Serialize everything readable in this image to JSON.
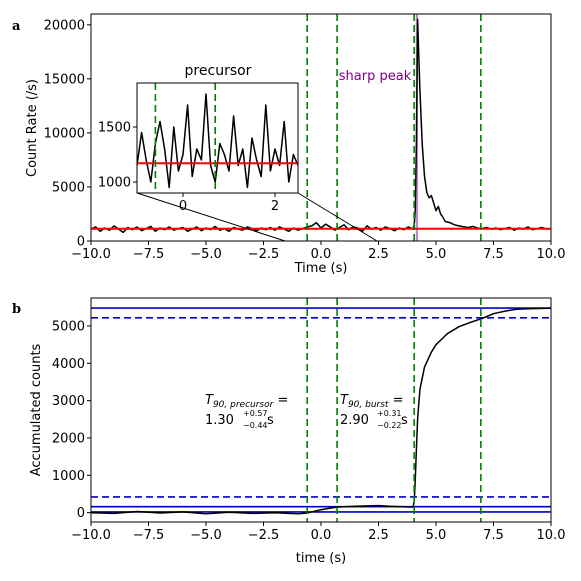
{
  "chart_data": [
    {
      "panel_label": "a",
      "type": "line",
      "xlabel": "Time (s)",
      "ylabel": "Count Rate (/s)",
      "xlim": [
        -10,
        10
      ],
      "ylim": [
        0,
        21000
      ],
      "xticks": [
        -10.0,
        -7.5,
        -5.0,
        -2.5,
        0.0,
        2.5,
        5.0,
        7.5,
        10.0
      ],
      "xtick_labels": [
        "−10.0",
        "−7.5",
        "−5.0",
        "−2.5",
        "0.0",
        "2.5",
        "5.0",
        "7.5",
        "10.0"
      ],
      "yticks": [
        0,
        5000,
        10000,
        15000,
        20000
      ],
      "ytick_labels": [
        "0",
        "5000",
        "10000",
        "15000",
        "20000"
      ],
      "series": [
        {
          "color": "#000000",
          "x": [
            -10.0,
            -9.8,
            -9.6,
            -9.4,
            -9.2,
            -9.0,
            -8.8,
            -8.6,
            -8.4,
            -8.2,
            -8.0,
            -7.8,
            -7.6,
            -7.4,
            -7.2,
            -7.0,
            -6.8,
            -6.6,
            -6.4,
            -6.2,
            -6.0,
            -5.8,
            -5.6,
            -5.4,
            -5.2,
            -5.0,
            -4.8,
            -4.6,
            -4.4,
            -4.2,
            -4.0,
            -3.8,
            -3.6,
            -3.4,
            -3.2,
            -3.0,
            -2.8,
            -2.6,
            -2.4,
            -2.2,
            -2.0,
            -1.8,
            -1.6,
            -1.4,
            -1.2,
            -1.0,
            -0.8,
            -0.6,
            -0.4,
            -0.2,
            0.0,
            0.2,
            0.4,
            0.6,
            0.8,
            1.0,
            1.2,
            1.4,
            1.6,
            1.8,
            2.0,
            2.2,
            2.4,
            2.6,
            2.8,
            3.0,
            3.2,
            3.4,
            3.6,
            3.8,
            4.0,
            4.05,
            4.1,
            4.15,
            4.2,
            4.3,
            4.4,
            4.5,
            4.6,
            4.7,
            4.8,
            4.9,
            5.0,
            5.1,
            5.2,
            5.3,
            5.4,
            5.6,
            5.8,
            6.0,
            6.2,
            6.4,
            6.6,
            6.8,
            7.0,
            7.2,
            7.4,
            7.6,
            7.8,
            8.0,
            8.2,
            8.4,
            8.6,
            8.8,
            9.0,
            9.2,
            9.4,
            9.6,
            9.8,
            10.0
          ],
          "y": [
            1100,
            1300,
            900,
            1200,
            1000,
            1400,
            1100,
            800,
            1250,
            1050,
            1300,
            950,
            1150,
            1350,
            900,
            1200,
            1050,
            1300,
            1000,
            1150,
            1250,
            900,
            1100,
            1300,
            950,
            1200,
            1050,
            1350,
            1000,
            1150,
            900,
            1250,
            1100,
            1000,
            1300,
            1150,
            950,
            1200,
            1050,
            1250,
            1000,
            1300,
            1100,
            900,
            1200,
            1000,
            1150,
            1300,
            1400,
            1700,
            1200,
            1550,
            1300,
            1000,
            1250,
            1500,
            1050,
            1300,
            1200,
            900,
            1400,
            1100,
            1250,
            1000,
            1300,
            1150,
            950,
            1200,
            1050,
            1300,
            1100,
            1500,
            3000,
            9000,
            20500,
            14000,
            9000,
            6000,
            4500,
            4000,
            4200,
            3500,
            2800,
            3200,
            2500,
            2200,
            1800,
            1700,
            1500,
            1400,
            1300,
            1250,
            1350,
            1200,
            1150,
            1250,
            1100,
            1200,
            1050,
            1150,
            1250,
            1000,
            1200,
            1100,
            1300,
            1050,
            1150,
            1250,
            1100,
            1150
          ]
        },
        {
          "color": "#ff0000",
          "x": [
            -10,
            10
          ],
          "y": [
            1130,
            1130
          ]
        }
      ],
      "vlines": [
        {
          "x": -0.6,
          "color": "#008000",
          "style": "dashed"
        },
        {
          "x": 0.7,
          "color": "#008000",
          "style": "dashed"
        },
        {
          "x": 4.05,
          "color": "#008000",
          "style": "dashed"
        },
        {
          "x": 6.95,
          "color": "#008000",
          "style": "dashed"
        }
      ],
      "shaded_span": {
        "x0": 4.12,
        "x1": 4.22,
        "color": "#b05fbf"
      },
      "annotation": {
        "text": "sharp peak",
        "x": 4.15,
        "y": 15700,
        "color": "#800080"
      },
      "inset": {
        "title": "precursor",
        "xlim": [
          -1.0,
          2.5
        ],
        "ylim": [
          900,
          1900
        ],
        "xticks": [
          0,
          2
        ],
        "xtick_labels": [
          "0",
          "2"
        ],
        "yticks": [
          1000,
          1500
        ],
        "ytick_labels": [
          "1000",
          "1500"
        ],
        "series": [
          {
            "color": "#000000",
            "x": [
              -1.0,
              -0.9,
              -0.8,
              -0.7,
              -0.6,
              -0.5,
              -0.4,
              -0.3,
              -0.2,
              -0.1,
              0.0,
              0.1,
              0.2,
              0.3,
              0.4,
              0.5,
              0.6,
              0.7,
              0.8,
              0.9,
              1.0,
              1.1,
              1.2,
              1.3,
              1.4,
              1.5,
              1.6,
              1.7,
              1.8,
              1.9,
              2.0,
              2.1,
              2.2,
              2.3,
              2.4,
              2.5
            ],
            "y": [
              1150,
              1450,
              1200,
              1000,
              1350,
              1550,
              1300,
              950,
              1500,
              1100,
              1250,
              1700,
              1050,
              1300,
              1200,
              1800,
              1150,
              1000,
              1350,
              1250,
              1100,
              1600,
              1150,
              1300,
              950,
              1400,
              1200,
              1050,
              1700,
              1100,
              1300,
              1150,
              1550,
              1000,
              1250,
              1150
            ]
          },
          {
            "color": "#ff0000",
            "x": [
              -1.0,
              2.5
            ],
            "y": [
              1170,
              1170
            ]
          }
        ],
        "vlines": [
          {
            "x": -0.6,
            "color": "#008000",
            "style": "dashed"
          },
          {
            "x": 0.7,
            "color": "#008000",
            "style": "dashed"
          }
        ]
      }
    },
    {
      "panel_label": "b",
      "type": "line",
      "xlabel": "time (s)",
      "ylabel": "Accumulated counts",
      "xlim": [
        -10,
        10
      ],
      "ylim": [
        -250,
        5750
      ],
      "xticks": [
        -10.0,
        -7.5,
        -5.0,
        -2.5,
        0.0,
        2.5,
        5.0,
        7.5,
        10.0
      ],
      "xtick_labels": [
        "−10.0",
        "−7.5",
        "−5.0",
        "−2.5",
        "0.0",
        "2.5",
        "5.0",
        "7.5",
        "10.0"
      ],
      "yticks": [
        0,
        1000,
        2000,
        3000,
        4000,
        5000
      ],
      "ytick_labels": [
        "0",
        "1000",
        "2000",
        "3000",
        "4000",
        "5000"
      ],
      "series": [
        {
          "color": "#000000",
          "x": [
            -10.0,
            -9.0,
            -8.0,
            -7.0,
            -6.0,
            -5.0,
            -4.0,
            -3.0,
            -2.0,
            -1.0,
            -0.6,
            0.0,
            0.5,
            0.7,
            1.0,
            1.5,
            2.0,
            2.5,
            3.0,
            3.5,
            4.0,
            4.05,
            4.1,
            4.15,
            4.2,
            4.3,
            4.5,
            4.8,
            5.0,
            5.5,
            6.0,
            6.5,
            7.0,
            7.5,
            8.0,
            8.5,
            9.0,
            9.5,
            10.0
          ],
          "y": [
            0,
            -20,
            30,
            -10,
            20,
            -30,
            10,
            -20,
            0,
            -30,
            -10,
            80,
            130,
            150,
            160,
            170,
            180,
            190,
            170,
            160,
            150,
            300,
            900,
            1700,
            2500,
            3300,
            3900,
            4300,
            4500,
            4800,
            4980,
            5100,
            5200,
            5330,
            5400,
            5450,
            5460,
            5470,
            5480
          ]
        }
      ],
      "hlines": [
        {
          "y": 5480,
          "color": "#0000cc",
          "style": "solid"
        },
        {
          "y": 5220,
          "color": "#0000cc",
          "style": "dashed"
        },
        {
          "y": 420,
          "color": "#0000cc",
          "style": "dashed"
        },
        {
          "y": 160,
          "color": "#0000cc",
          "style": "solid"
        },
        {
          "y": 20,
          "color": "#0000cc",
          "style": "solid"
        }
      ],
      "vlines": [
        {
          "x": -0.6,
          "color": "#008000",
          "style": "dashed"
        },
        {
          "x": 0.7,
          "color": "#008000",
          "style": "dashed"
        },
        {
          "x": 4.05,
          "color": "#008000",
          "style": "dashed"
        },
        {
          "x": 6.95,
          "color": "#008000",
          "style": "dashed"
        }
      ],
      "annotations": [
        {
          "name": "t90-precursor",
          "main": "T",
          "sub": "90, precursor",
          "eq": " =",
          "value": "1.30",
          "up": "+0.57",
          "down": "−0.44",
          "unit": " s"
        },
        {
          "name": "t90-burst",
          "main": "T",
          "sub": "90, burst",
          "eq": " =",
          "value": "2.90",
          "up": "+0.31",
          "down": "−0.22",
          "unit": " s"
        }
      ]
    }
  ]
}
